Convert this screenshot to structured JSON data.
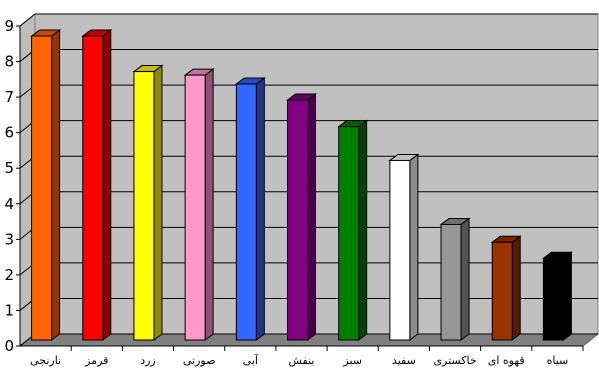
{
  "chart_data": {
    "type": "bar",
    "title": "",
    "xlabel": "",
    "ylabel": "",
    "ylim": [
      0,
      9
    ],
    "yticks": [
      "0",
      "1",
      "2",
      "3",
      "4",
      "5",
      "6",
      "7",
      "8",
      "9"
    ],
    "grid": true,
    "categories": [
      "نارنجی",
      "قرمز",
      "زرد",
      "صورتی",
      "آبی",
      "بنفش",
      "سبز",
      "سفید",
      "خاکستری",
      "قهوه ای",
      "سیاه"
    ],
    "values": [
      8.55,
      8.55,
      7.55,
      7.45,
      7.2,
      6.75,
      6.0,
      5.05,
      3.25,
      2.75,
      2.3
    ],
    "colors": [
      "#ff6600",
      "#ff0000",
      "#ffff00",
      "#ff99cc",
      "#3366ff",
      "#800080",
      "#008000",
      "#ffffff",
      "#969696",
      "#993300",
      "#000000"
    ]
  }
}
